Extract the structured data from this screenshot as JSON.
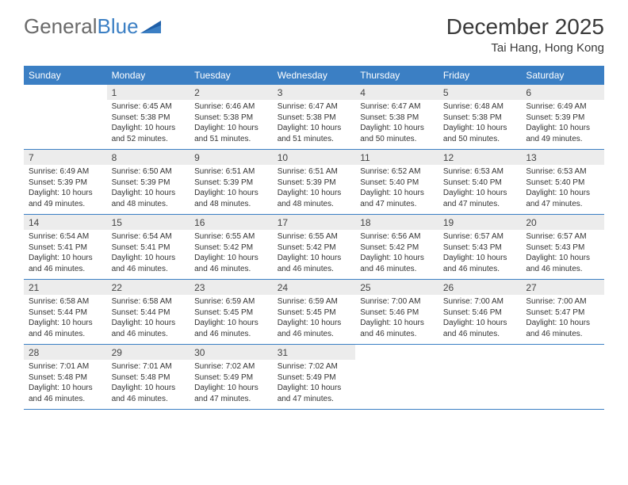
{
  "logo": {
    "text_a": "General",
    "text_b": "Blue"
  },
  "header": {
    "month_title": "December 2025",
    "location": "Tai Hang, Hong Kong"
  },
  "colors": {
    "accent": "#3b7fc4",
    "header_text": "#6a6a6a",
    "daynum_bg": "#ececec",
    "text": "#333333",
    "bg": "#ffffff"
  },
  "dow": [
    "Sunday",
    "Monday",
    "Tuesday",
    "Wednesday",
    "Thursday",
    "Friday",
    "Saturday"
  ],
  "weeks": [
    [
      null,
      {
        "n": "1",
        "sr": "Sunrise: 6:45 AM",
        "ss": "Sunset: 5:38 PM",
        "d1": "Daylight: 10 hours",
        "d2": "and 52 minutes."
      },
      {
        "n": "2",
        "sr": "Sunrise: 6:46 AM",
        "ss": "Sunset: 5:38 PM",
        "d1": "Daylight: 10 hours",
        "d2": "and 51 minutes."
      },
      {
        "n": "3",
        "sr": "Sunrise: 6:47 AM",
        "ss": "Sunset: 5:38 PM",
        "d1": "Daylight: 10 hours",
        "d2": "and 51 minutes."
      },
      {
        "n": "4",
        "sr": "Sunrise: 6:47 AM",
        "ss": "Sunset: 5:38 PM",
        "d1": "Daylight: 10 hours",
        "d2": "and 50 minutes."
      },
      {
        "n": "5",
        "sr": "Sunrise: 6:48 AM",
        "ss": "Sunset: 5:38 PM",
        "d1": "Daylight: 10 hours",
        "d2": "and 50 minutes."
      },
      {
        "n": "6",
        "sr": "Sunrise: 6:49 AM",
        "ss": "Sunset: 5:39 PM",
        "d1": "Daylight: 10 hours",
        "d2": "and 49 minutes."
      }
    ],
    [
      {
        "n": "7",
        "sr": "Sunrise: 6:49 AM",
        "ss": "Sunset: 5:39 PM",
        "d1": "Daylight: 10 hours",
        "d2": "and 49 minutes."
      },
      {
        "n": "8",
        "sr": "Sunrise: 6:50 AM",
        "ss": "Sunset: 5:39 PM",
        "d1": "Daylight: 10 hours",
        "d2": "and 48 minutes."
      },
      {
        "n": "9",
        "sr": "Sunrise: 6:51 AM",
        "ss": "Sunset: 5:39 PM",
        "d1": "Daylight: 10 hours",
        "d2": "and 48 minutes."
      },
      {
        "n": "10",
        "sr": "Sunrise: 6:51 AM",
        "ss": "Sunset: 5:39 PM",
        "d1": "Daylight: 10 hours",
        "d2": "and 48 minutes."
      },
      {
        "n": "11",
        "sr": "Sunrise: 6:52 AM",
        "ss": "Sunset: 5:40 PM",
        "d1": "Daylight: 10 hours",
        "d2": "and 47 minutes."
      },
      {
        "n": "12",
        "sr": "Sunrise: 6:53 AM",
        "ss": "Sunset: 5:40 PM",
        "d1": "Daylight: 10 hours",
        "d2": "and 47 minutes."
      },
      {
        "n": "13",
        "sr": "Sunrise: 6:53 AM",
        "ss": "Sunset: 5:40 PM",
        "d1": "Daylight: 10 hours",
        "d2": "and 47 minutes."
      }
    ],
    [
      {
        "n": "14",
        "sr": "Sunrise: 6:54 AM",
        "ss": "Sunset: 5:41 PM",
        "d1": "Daylight: 10 hours",
        "d2": "and 46 minutes."
      },
      {
        "n": "15",
        "sr": "Sunrise: 6:54 AM",
        "ss": "Sunset: 5:41 PM",
        "d1": "Daylight: 10 hours",
        "d2": "and 46 minutes."
      },
      {
        "n": "16",
        "sr": "Sunrise: 6:55 AM",
        "ss": "Sunset: 5:42 PM",
        "d1": "Daylight: 10 hours",
        "d2": "and 46 minutes."
      },
      {
        "n": "17",
        "sr": "Sunrise: 6:55 AM",
        "ss": "Sunset: 5:42 PM",
        "d1": "Daylight: 10 hours",
        "d2": "and 46 minutes."
      },
      {
        "n": "18",
        "sr": "Sunrise: 6:56 AM",
        "ss": "Sunset: 5:42 PM",
        "d1": "Daylight: 10 hours",
        "d2": "and 46 minutes."
      },
      {
        "n": "19",
        "sr": "Sunrise: 6:57 AM",
        "ss": "Sunset: 5:43 PM",
        "d1": "Daylight: 10 hours",
        "d2": "and 46 minutes."
      },
      {
        "n": "20",
        "sr": "Sunrise: 6:57 AM",
        "ss": "Sunset: 5:43 PM",
        "d1": "Daylight: 10 hours",
        "d2": "and 46 minutes."
      }
    ],
    [
      {
        "n": "21",
        "sr": "Sunrise: 6:58 AM",
        "ss": "Sunset: 5:44 PM",
        "d1": "Daylight: 10 hours",
        "d2": "and 46 minutes."
      },
      {
        "n": "22",
        "sr": "Sunrise: 6:58 AM",
        "ss": "Sunset: 5:44 PM",
        "d1": "Daylight: 10 hours",
        "d2": "and 46 minutes."
      },
      {
        "n": "23",
        "sr": "Sunrise: 6:59 AM",
        "ss": "Sunset: 5:45 PM",
        "d1": "Daylight: 10 hours",
        "d2": "and 46 minutes."
      },
      {
        "n": "24",
        "sr": "Sunrise: 6:59 AM",
        "ss": "Sunset: 5:45 PM",
        "d1": "Daylight: 10 hours",
        "d2": "and 46 minutes."
      },
      {
        "n": "25",
        "sr": "Sunrise: 7:00 AM",
        "ss": "Sunset: 5:46 PM",
        "d1": "Daylight: 10 hours",
        "d2": "and 46 minutes."
      },
      {
        "n": "26",
        "sr": "Sunrise: 7:00 AM",
        "ss": "Sunset: 5:46 PM",
        "d1": "Daylight: 10 hours",
        "d2": "and 46 minutes."
      },
      {
        "n": "27",
        "sr": "Sunrise: 7:00 AM",
        "ss": "Sunset: 5:47 PM",
        "d1": "Daylight: 10 hours",
        "d2": "and 46 minutes."
      }
    ],
    [
      {
        "n": "28",
        "sr": "Sunrise: 7:01 AM",
        "ss": "Sunset: 5:48 PM",
        "d1": "Daylight: 10 hours",
        "d2": "and 46 minutes."
      },
      {
        "n": "29",
        "sr": "Sunrise: 7:01 AM",
        "ss": "Sunset: 5:48 PM",
        "d1": "Daylight: 10 hours",
        "d2": "and 46 minutes."
      },
      {
        "n": "30",
        "sr": "Sunrise: 7:02 AM",
        "ss": "Sunset: 5:49 PM",
        "d1": "Daylight: 10 hours",
        "d2": "and 47 minutes."
      },
      {
        "n": "31",
        "sr": "Sunrise: 7:02 AM",
        "ss": "Sunset: 5:49 PM",
        "d1": "Daylight: 10 hours",
        "d2": "and 47 minutes."
      },
      null,
      null,
      null
    ]
  ]
}
